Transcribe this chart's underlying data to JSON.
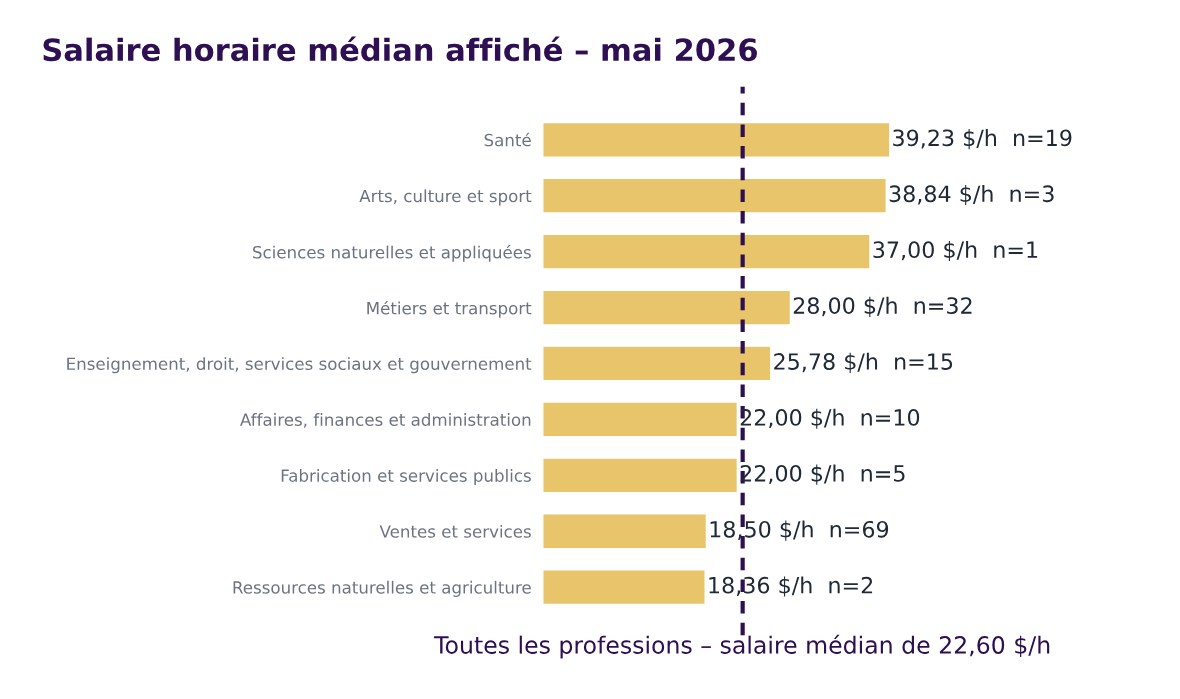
{
  "chart_data": {
    "type": "bar",
    "orientation": "horizontal",
    "title": "Salaire horaire médian affiché – mai 2026",
    "categories": [
      "Santé",
      "Arts, culture et sport",
      "Sciences naturelles et appliquées",
      "Métiers et transport",
      "Enseignement, droit, services sociaux et gouvernement",
      "Affaires, finances et administration",
      "Fabrication et services publics",
      "Ventes et services",
      "Ressources naturelles et agriculture"
    ],
    "values": [
      39.23,
      38.84,
      37.0,
      28.0,
      25.78,
      22.0,
      22.0,
      18.5,
      18.36
    ],
    "value_labels": [
      "39,23 $/h  n=19",
      "38,84 $/h  n=3",
      "37,00 $/h  n=1",
      "28,00 $/h  n=32",
      "25,78 $/h  n=15",
      "22,00 $/h  n=10",
      "22,00 $/h  n=5",
      "18,50 $/h  n=69",
      "18,36 $/h  n=2"
    ],
    "color": "#e8c46a",
    "ref_lines": [
      {
        "axis": "x",
        "value": 22.6,
        "label": "Toutes les professions – salaire médian de 22,60 $/h",
        "color": "#2e0f52",
        "line_style": "dashed"
      }
    ],
    "grid": false,
    "legend": false,
    "tick_labels": "y"
  }
}
